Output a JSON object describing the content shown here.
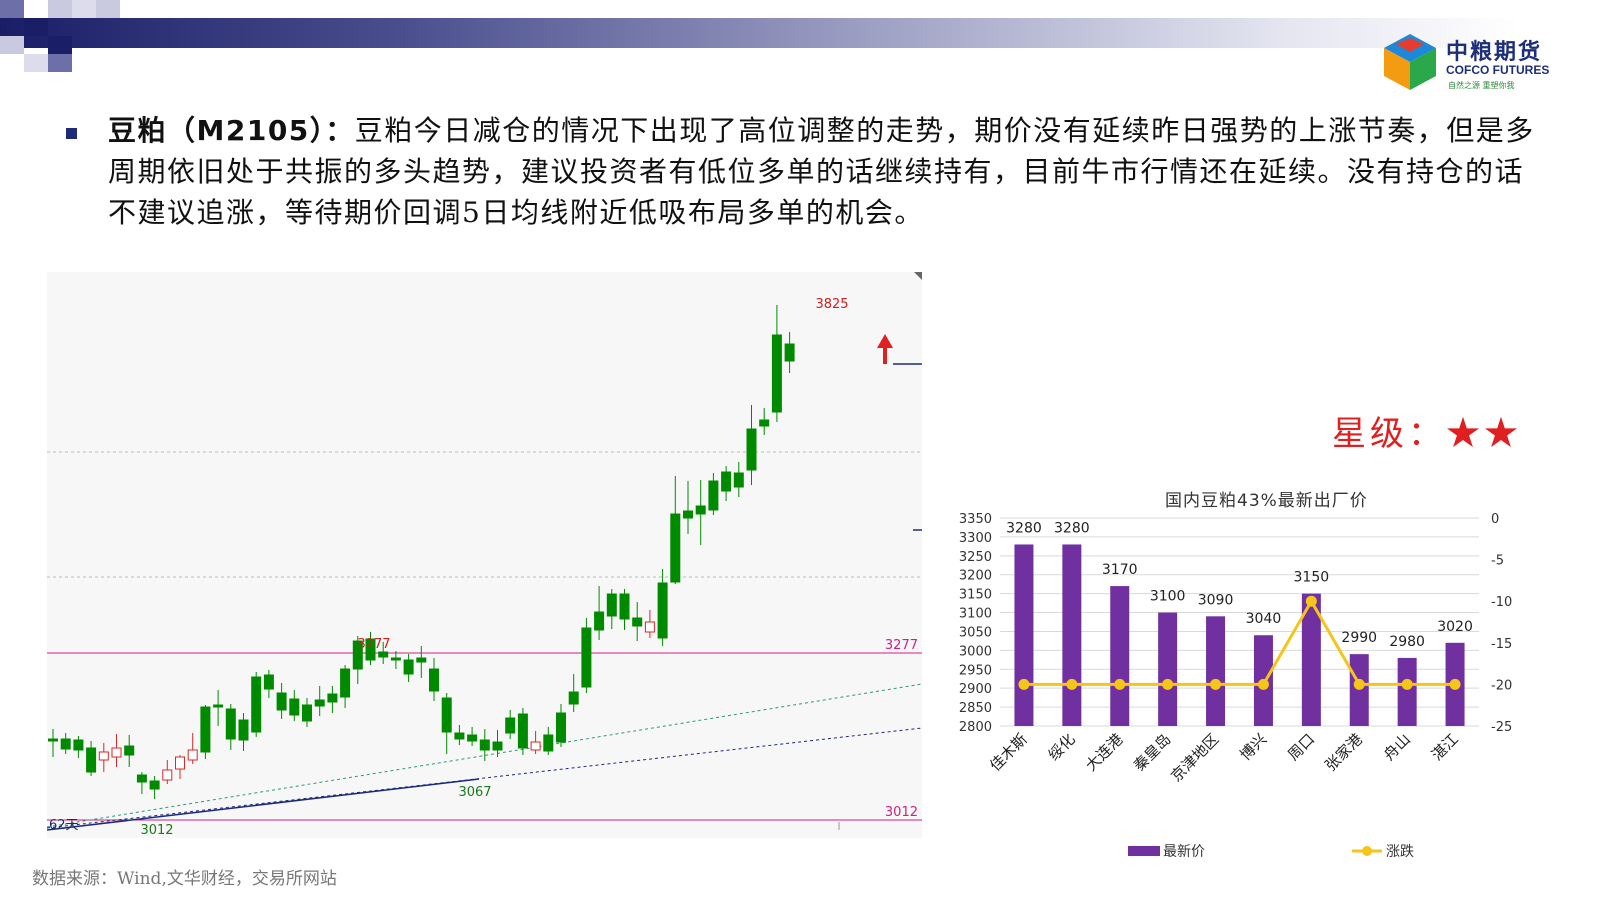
{
  "brand": {
    "name_cn": "中粮期货",
    "name_en": "COFCO FUTURES",
    "slogan": "自然之源  重塑你我"
  },
  "commentary": {
    "heading": "豆粕（M2105）：",
    "body": "豆粕今日减仓的情况下出现了高位调整的走势，期价没有延续昨日强势的上涨节奏，但是多周期依旧处于共振的多头趋势，建议投资者有低位多单的话继续持有，目前牛市行情还在延续。没有持仓的话不建议追涨，等待期价回调5日均线附近低吸布局多单的机会。"
  },
  "rating": {
    "label": "星级：",
    "stars": "★★"
  },
  "source_note": "数据来源：Wind,文华财经，交易所网站",
  "kline": {
    "high_label": "3825",
    "level_label": "3277",
    "level_right_label": "3277",
    "low_label_right": "3012",
    "low_label": "3012",
    "mid_low_label": "3067",
    "period_label": "62天",
    "colors": {
      "up": "#d42a2a",
      "down": "#008a00",
      "level": "#cc2288"
    }
  },
  "chart_data": {
    "type": "bar",
    "title": "国内豆粕43%最新出厂价",
    "categories": [
      "佳木斯",
      "绥化",
      "大连港",
      "秦皇岛",
      "京津地区",
      "博兴",
      "周口",
      "张家港",
      "舟山",
      "湛江"
    ],
    "series": [
      {
        "name": "最新价",
        "type": "bar",
        "axis": "left",
        "color": "#7030a0",
        "values": [
          3280,
          3280,
          3170,
          3100,
          3090,
          3040,
          3150,
          2990,
          2980,
          3020
        ]
      },
      {
        "name": "涨跌",
        "type": "line",
        "axis": "right",
        "color": "#f5c518",
        "values": [
          -20,
          -20,
          -20,
          -20,
          -20,
          -20,
          -10,
          -20,
          -20,
          -20
        ]
      }
    ],
    "ylim_left": [
      2800,
      3350
    ],
    "yticks_left": [
      "3350",
      "3300",
      "3250",
      "3200",
      "3150",
      "3100",
      "3050",
      "3000",
      "2950",
      "2900",
      "2850",
      "2800"
    ],
    "ylim_right": [
      -25,
      0
    ],
    "yticks_right": [
      "0",
      "-5",
      "-10",
      "-15",
      "-20",
      "-25"
    ],
    "legend": "bottom",
    "data_labels": true
  }
}
